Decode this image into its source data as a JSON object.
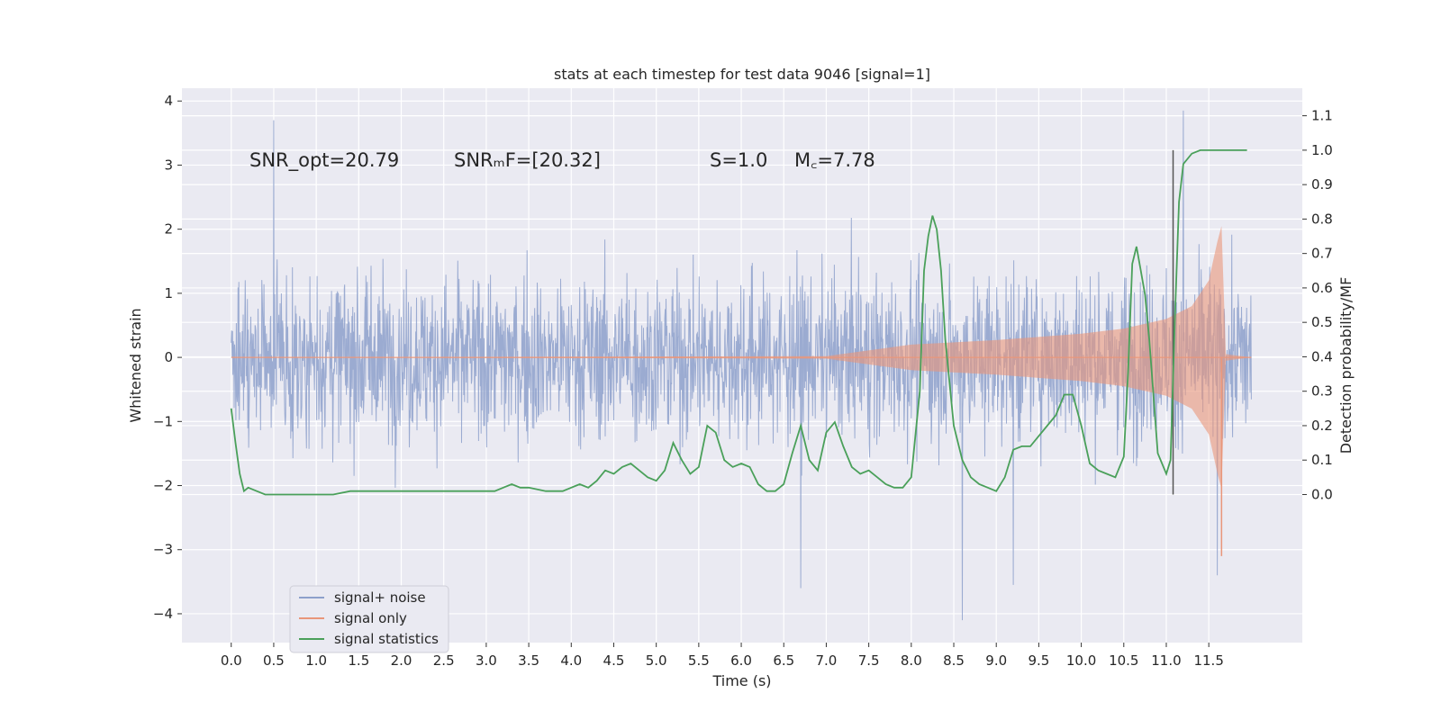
{
  "chart_data": {
    "type": "line",
    "title": "stats at each timestep for test data 9046 [signal=1]",
    "xlabel": "Time (s)",
    "ylabel": "Whitened strain",
    "ylabel_right": "Detection probability/MF",
    "xlim": [
      -0.58,
      12.6
    ],
    "ylim": [
      -4.45,
      4.2
    ],
    "ylim_right": [
      -0.43,
      1.18
    ],
    "x_ticks": [
      0.0,
      0.5,
      1.0,
      1.5,
      2.0,
      2.5,
      3.0,
      3.5,
      4.0,
      4.5,
      5.0,
      5.5,
      6.0,
      6.5,
      7.0,
      7.5,
      8.0,
      8.5,
      9.0,
      9.5,
      10.0,
      10.5,
      11.0,
      11.5
    ],
    "x_tick_labels": [
      "0.0",
      "0.5",
      "1.0",
      "1.5",
      "2.0",
      "2.5",
      "3.0",
      "3.5",
      "4.0",
      "4.5",
      "5.0",
      "5.5",
      "6.0",
      "6.5",
      "7.0",
      "7.5",
      "8.0",
      "8.5",
      "9.0",
      "9.5",
      "10.0",
      "10.5",
      "11.0",
      "11.5"
    ],
    "y_ticks": [
      -4,
      -3,
      -2,
      -1,
      0,
      1,
      2,
      3,
      4
    ],
    "y_tick_labels": [
      "−4",
      "−3",
      "−2",
      "−1",
      "0",
      "1",
      "2",
      "3",
      "4"
    ],
    "y_right_ticks": [
      0.0,
      0.1,
      0.2,
      0.3,
      0.4,
      0.5,
      0.6,
      0.7,
      0.8,
      0.9,
      1.0,
      1.1
    ],
    "y_right_tick_labels": [
      "0.0",
      "0.1",
      "0.2",
      "0.3",
      "0.4",
      "0.5",
      "0.6",
      "0.7",
      "0.8",
      "0.9",
      "1.0",
      "1.1"
    ],
    "grid": true,
    "legend_position": "lower-left",
    "annotations": [
      {
        "text": "SNR_opt=20.79",
        "x": 0.2,
        "y": 3.0
      },
      {
        "text": "SNRₘF=[20.32]",
        "x": 2.6,
        "y": 3.0
      },
      {
        "text": "S=1.0",
        "x": 5.6,
        "y": 3.0
      },
      {
        "text": "M꜀=7.78",
        "x": 6.6,
        "y": 3.0
      }
    ],
    "vline": {
      "x": 11.08,
      "y_right": [
        0.0,
        1.0
      ]
    },
    "series": [
      {
        "name": "signal+ noise",
        "color": "#8da0cb",
        "axis": "left",
        "duration": 12.0,
        "typical_envelope": [
          -1.7,
          1.7
        ],
        "max_excursions": [
          {
            "x": 0.5,
            "y": 3.7
          },
          {
            "x": 8.6,
            "y": -4.1
          },
          {
            "x": 11.2,
            "y": 3.85
          },
          {
            "x": 6.7,
            "y": -3.6
          },
          {
            "x": 9.2,
            "y": -3.55
          },
          {
            "x": 11.6,
            "y": -3.4
          }
        ]
      },
      {
        "name": "signal only",
        "color": "#e9967a",
        "axis": "left",
        "envelope": [
          {
            "x": 0.0,
            "y": 0.0
          },
          {
            "x": 7.0,
            "y": 0.02
          },
          {
            "x": 8.0,
            "y": 0.2
          },
          {
            "x": 9.0,
            "y": 0.27
          },
          {
            "x": 10.0,
            "y": 0.37
          },
          {
            "x": 10.5,
            "y": 0.45
          },
          {
            "x": 11.0,
            "y": 0.6
          },
          {
            "x": 11.3,
            "y": 0.8
          },
          {
            "x": 11.5,
            "y": 1.2
          },
          {
            "x": 11.6,
            "y": 1.8
          },
          {
            "x": 11.65,
            "y": 2.05
          },
          {
            "x": 11.7,
            "y": 0.05
          },
          {
            "x": 12.0,
            "y": 0.0
          }
        ],
        "min_point": {
          "x": 11.65,
          "y": -3.1
        }
      },
      {
        "name": "signal statistics",
        "color": "#4aa05a",
        "axis": "right",
        "x": [
          0.0,
          0.05,
          0.1,
          0.15,
          0.2,
          0.3,
          0.4,
          0.5,
          0.7,
          0.9,
          1.0,
          1.2,
          1.4,
          1.6,
          1.8,
          2.0,
          2.2,
          2.4,
          2.6,
          2.8,
          3.0,
          3.1,
          3.2,
          3.3,
          3.4,
          3.5,
          3.7,
          3.9,
          4.0,
          4.1,
          4.2,
          4.3,
          4.4,
          4.5,
          4.6,
          4.7,
          4.8,
          4.9,
          5.0,
          5.1,
          5.2,
          5.3,
          5.4,
          5.5,
          5.6,
          5.7,
          5.8,
          5.9,
          6.0,
          6.1,
          6.2,
          6.3,
          6.4,
          6.5,
          6.6,
          6.7,
          6.8,
          6.9,
          7.0,
          7.1,
          7.2,
          7.3,
          7.4,
          7.5,
          7.6,
          7.7,
          7.8,
          7.9,
          8.0,
          8.1,
          8.15,
          8.2,
          8.25,
          8.3,
          8.35,
          8.4,
          8.5,
          8.6,
          8.7,
          8.8,
          8.9,
          9.0,
          9.1,
          9.2,
          9.3,
          9.4,
          9.5,
          9.6,
          9.7,
          9.8,
          9.9,
          10.0,
          10.1,
          10.2,
          10.3,
          10.4,
          10.5,
          10.55,
          10.6,
          10.65,
          10.7,
          10.75,
          10.8,
          10.9,
          11.0,
          11.05,
          11.1,
          11.15,
          11.2,
          11.3,
          11.4,
          11.6,
          11.8,
          11.95
        ],
        "values": [
          0.25,
          0.15,
          0.06,
          0.01,
          0.02,
          0.01,
          0.0,
          0.0,
          0.0,
          0.0,
          0.0,
          0.0,
          0.01,
          0.01,
          0.01,
          0.01,
          0.01,
          0.01,
          0.01,
          0.01,
          0.01,
          0.01,
          0.02,
          0.03,
          0.02,
          0.02,
          0.01,
          0.01,
          0.02,
          0.03,
          0.02,
          0.04,
          0.07,
          0.06,
          0.08,
          0.09,
          0.07,
          0.05,
          0.04,
          0.07,
          0.15,
          0.1,
          0.06,
          0.08,
          0.2,
          0.18,
          0.1,
          0.08,
          0.09,
          0.08,
          0.03,
          0.01,
          0.01,
          0.03,
          0.12,
          0.2,
          0.1,
          0.07,
          0.18,
          0.21,
          0.14,
          0.08,
          0.06,
          0.07,
          0.05,
          0.03,
          0.02,
          0.02,
          0.05,
          0.3,
          0.65,
          0.75,
          0.81,
          0.77,
          0.65,
          0.45,
          0.2,
          0.1,
          0.05,
          0.03,
          0.02,
          0.01,
          0.05,
          0.13,
          0.14,
          0.14,
          0.17,
          0.2,
          0.23,
          0.29,
          0.29,
          0.2,
          0.09,
          0.07,
          0.06,
          0.05,
          0.11,
          0.35,
          0.67,
          0.72,
          0.65,
          0.58,
          0.45,
          0.12,
          0.06,
          0.1,
          0.5,
          0.85,
          0.96,
          0.99,
          1.0,
          1.0,
          1.0,
          1.0
        ]
      }
    ]
  }
}
